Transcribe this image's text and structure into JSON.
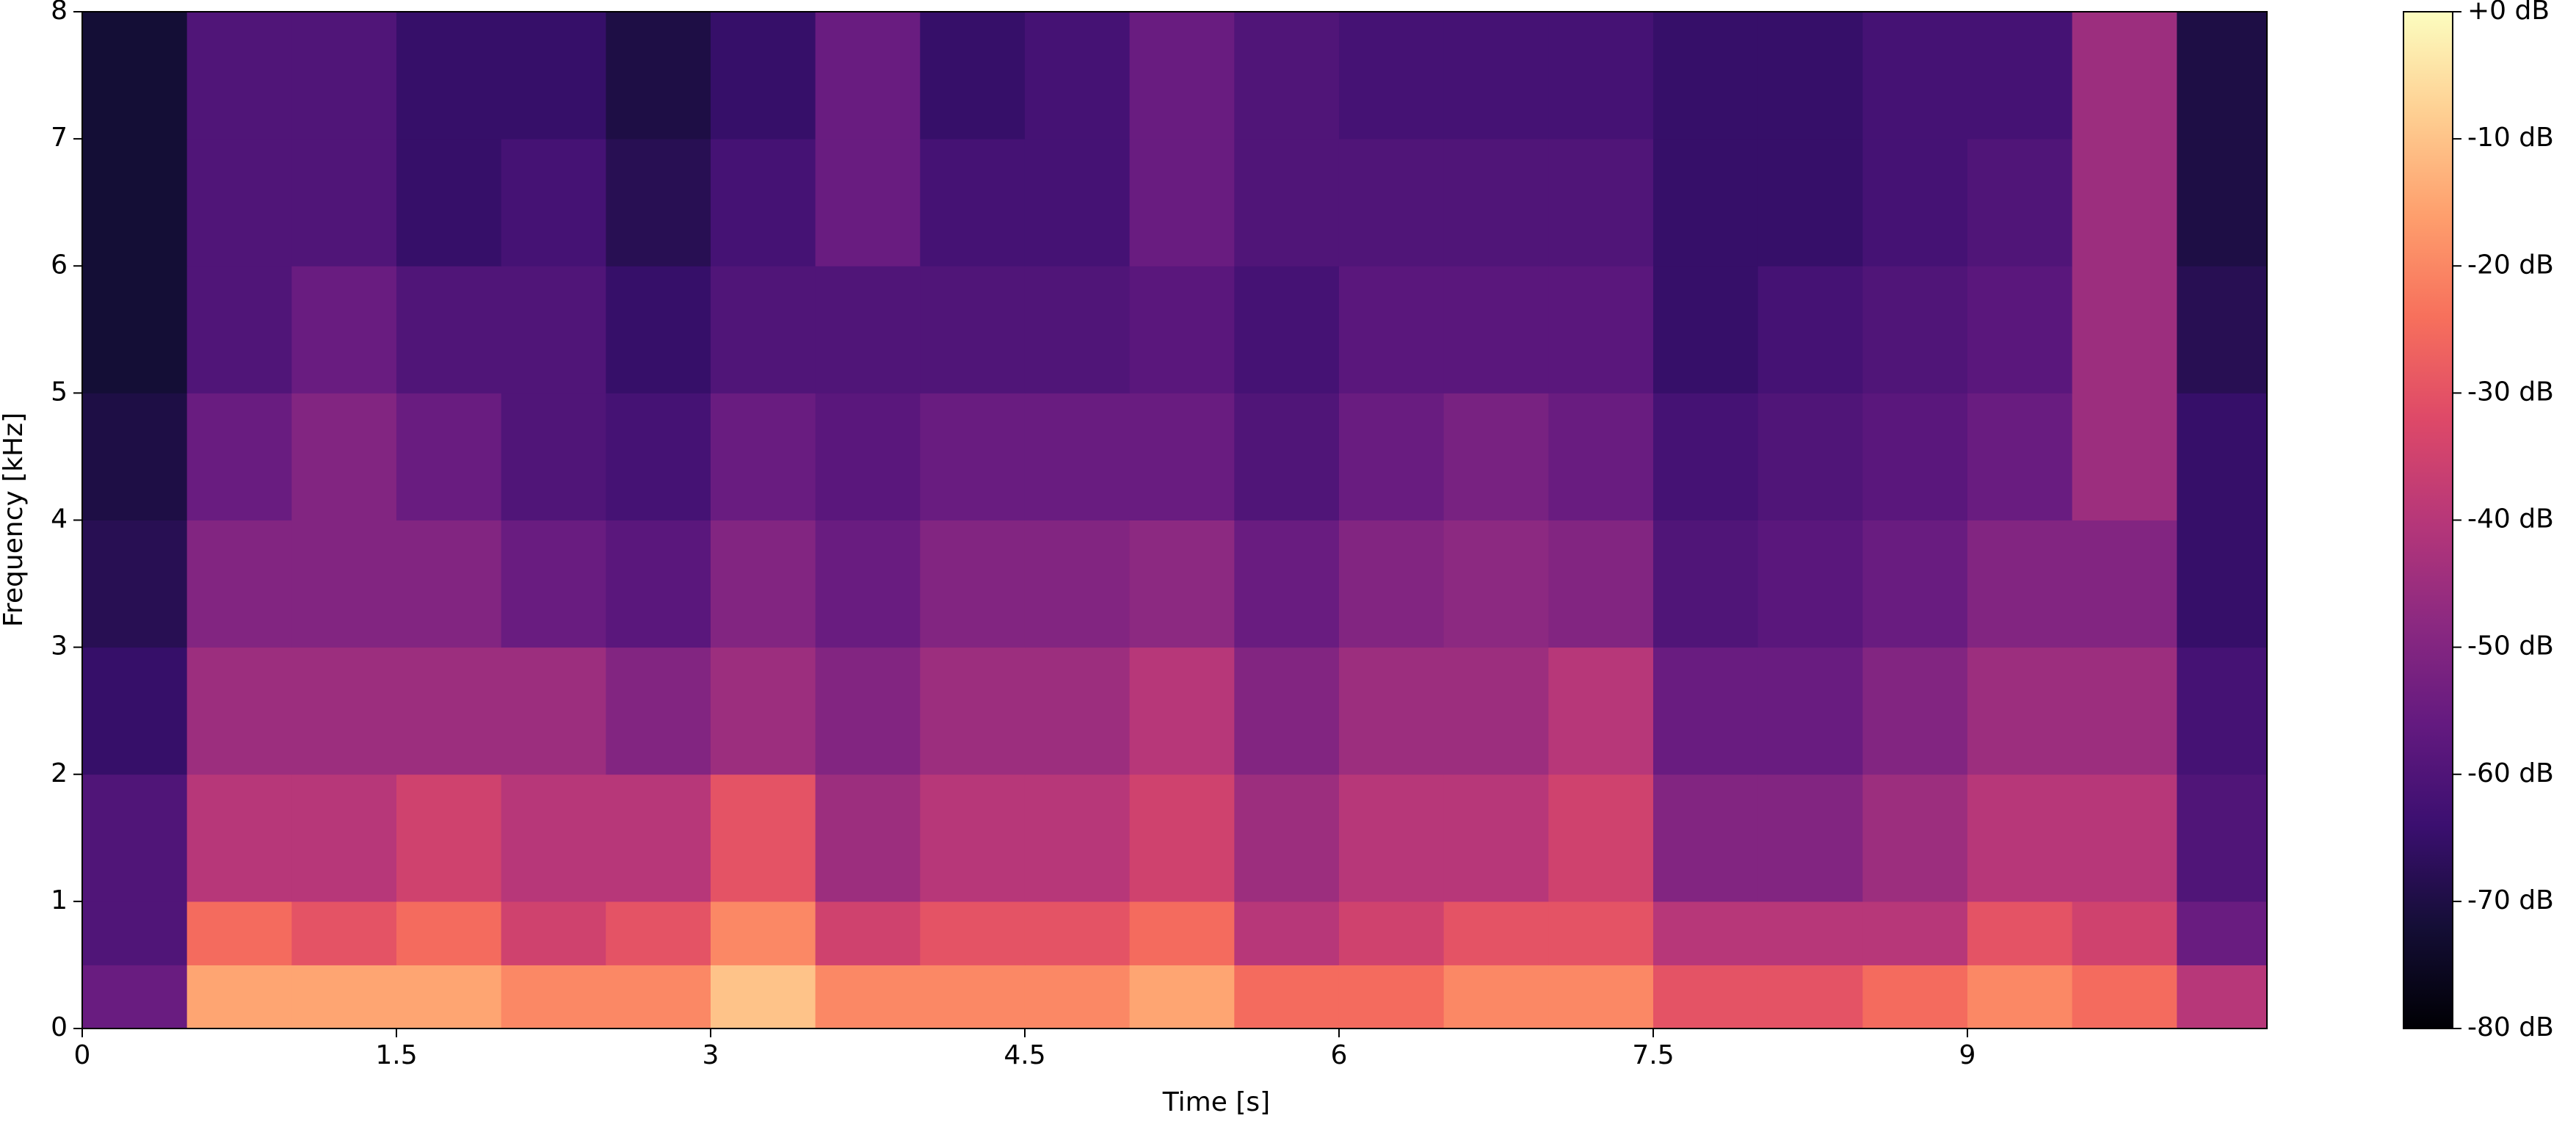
{
  "chart_data": {
    "type": "spectrogram",
    "xlabel": "Time [s]",
    "ylabel": "Frequency [kHz]",
    "xlim": [
      0,
      10.43
    ],
    "ylim": [
      0,
      8
    ],
    "xticks": [
      0,
      1.5,
      3,
      4.5,
      6,
      7.5,
      9
    ],
    "yticks": [
      0,
      1,
      2,
      3,
      4,
      5,
      6,
      7,
      8
    ],
    "time_bins": [
      0,
      0.5,
      1,
      1.5,
      2,
      2.5,
      3,
      3.5,
      4,
      4.5,
      5,
      5.5,
      6,
      6.5,
      7,
      7.5,
      8,
      8.5,
      9,
      9.5,
      10,
      10.43
    ],
    "freq_bins": [
      0,
      0.5,
      1,
      2,
      3,
      4,
      5,
      6,
      7,
      8
    ],
    "colormap": "magma",
    "zlim": [
      -80,
      0
    ],
    "zticks": [
      {
        "value": 0,
        "label": "+0 dB"
      },
      {
        "value": -10,
        "label": "-10 dB"
      },
      {
        "value": -20,
        "label": "-20 dB"
      },
      {
        "value": -30,
        "label": "-30 dB"
      },
      {
        "value": -40,
        "label": "-40 dB"
      },
      {
        "value": -50,
        "label": "-50 dB"
      },
      {
        "value": -60,
        "label": "-60 dB"
      },
      {
        "value": -70,
        "label": "-70 dB"
      },
      {
        "value": -80,
        "label": "-80 dB"
      }
    ],
    "values": [
      [
        -55,
        -15,
        -15,
        -15,
        -20,
        -20,
        -10,
        -20,
        -20,
        -20,
        -15,
        -25,
        -25,
        -20,
        -20,
        -30,
        -30,
        -25,
        -20,
        -25,
        -40
      ],
      [
        -60,
        -25,
        -30,
        -25,
        -35,
        -30,
        -20,
        -35,
        -30,
        -30,
        -25,
        -40,
        -35,
        -30,
        -30,
        -40,
        -40,
        -40,
        -30,
        -35,
        -55
      ],
      [
        -60,
        -40,
        -40,
        -35,
        -40,
        -40,
        -30,
        -45,
        -40,
        -40,
        -35,
        -45,
        -40,
        -40,
        -35,
        -50,
        -50,
        -45,
        -40,
        -40,
        -60
      ],
      [
        -65,
        -45,
        -45,
        -45,
        -45,
        -50,
        -45,
        -50,
        -45,
        -45,
        -40,
        -50,
        -45,
        -45,
        -40,
        -55,
        -55,
        -50,
        -45,
        -45,
        -62
      ],
      [
        -68,
        -50,
        -50,
        -50,
        -55,
        -58,
        -50,
        -55,
        -50,
        -50,
        -48,
        -55,
        -50,
        -48,
        -50,
        -60,
        -58,
        -55,
        -50,
        -50,
        -65
      ],
      [
        -70,
        -55,
        -50,
        -55,
        -60,
        -62,
        -55,
        -58,
        -55,
        -55,
        -55,
        -60,
        -55,
        -52,
        -55,
        -62,
        -60,
        -58,
        -55,
        -45,
        -65
      ],
      [
        -72,
        -60,
        -55,
        -60,
        -60,
        -65,
        -60,
        -60,
        -60,
        -60,
        -58,
        -62,
        -58,
        -58,
        -58,
        -65,
        -62,
        -60,
        -58,
        -45,
        -68
      ],
      [
        -72,
        -60,
        -60,
        -65,
        -62,
        -68,
        -62,
        -55,
        -62,
        -62,
        -55,
        -60,
        -60,
        -60,
        -60,
        -65,
        -65,
        -62,
        -60,
        -45,
        -70
      ],
      [
        -72,
        -60,
        -60,
        -65,
        -65,
        -70,
        -65,
        -55,
        -65,
        -62,
        -55,
        -60,
        -62,
        -62,
        -62,
        -65,
        -65,
        -62,
        -62,
        -45,
        -70
      ]
    ]
  }
}
